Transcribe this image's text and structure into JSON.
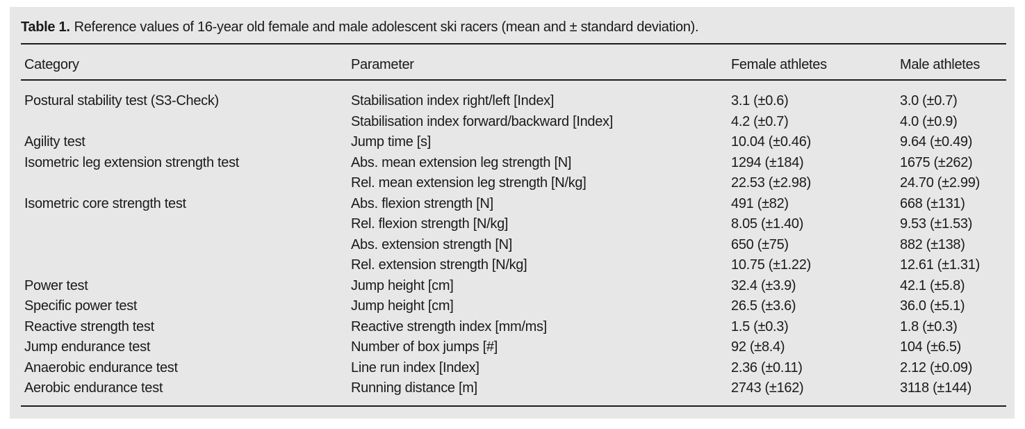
{
  "page": {
    "background": "#ffffff",
    "panel_background": "#e7e7e7",
    "text_color": "#1a1a1a",
    "rule_color": "#1c1c1c"
  },
  "caption": {
    "label": "Table 1.",
    "text": "Reference values of 16-year old female and male adolescent ski racers (mean and ± standard deviation)."
  },
  "table": {
    "columns": [
      "Category",
      "Parameter",
      "Female athletes",
      "Male athletes"
    ],
    "rows": [
      {
        "category": "Postural stability test (S3-Check)",
        "parameter": "Stabilisation index right/left [Index]",
        "female": "3.1 (±0.6)",
        "male": "3.0 (±0.7)"
      },
      {
        "category": "",
        "parameter": "Stabilisation index forward/backward [Index]",
        "female": "4.2 (±0.7)",
        "male": "4.0 (±0.9)"
      },
      {
        "category": "Agility test",
        "parameter": "Jump time [s]",
        "female": "10.04 (±0.46)",
        "male": "9.64 (±0.49)"
      },
      {
        "category": "Isometric leg extension strength test",
        "parameter": "Abs. mean extension leg strength [N]",
        "female": "1294 (±184)",
        "male": "1675 (±262)"
      },
      {
        "category": "",
        "parameter": "Rel. mean extension leg strength [N/kg]",
        "female": "22.53 (±2.98)",
        "male": "24.70 (±2.99)"
      },
      {
        "category": "Isometric core strength test",
        "parameter": "Abs. flexion strength [N]",
        "female": "491 (±82)",
        "male": "668 (±131)"
      },
      {
        "category": "",
        "parameter": "Rel. flexion strength [N/kg]",
        "female": "8.05 (±1.40)",
        "male": "9.53 (±1.53)"
      },
      {
        "category": "",
        "parameter": "Abs. extension strength [N]",
        "female": "650 (±75)",
        "male": "882 (±138)"
      },
      {
        "category": "",
        "parameter": "Rel. extension strength [N/kg]",
        "female": "10.75 (±1.22)",
        "male": "12.61 (±1.31)"
      },
      {
        "category": "Power test",
        "parameter": "Jump height [cm]",
        "female": "32.4 (±3.9)",
        "male": "42.1 (±5.8)"
      },
      {
        "category": "Specific power test",
        "parameter": "Jump height [cm]",
        "female": "26.5 (±3.6)",
        "male": "36.0 (±5.1)"
      },
      {
        "category": "Reactive strength test",
        "parameter": "Reactive strength index [mm/ms]",
        "female": "1.5 (±0.3)",
        "male": "1.8 (±0.3)"
      },
      {
        "category": "Jump endurance test",
        "parameter": "Number of box jumps [#]",
        "female": "92 (±8.4)",
        "male": "104 (±6.5)"
      },
      {
        "category": "Anaerobic endurance test",
        "parameter": "Line run index [Index]",
        "female": "2.36 (±0.11)",
        "male": "2.12 (±0.09)"
      },
      {
        "category": "Aerobic endurance test",
        "parameter": "Running distance [m]",
        "female": "2743 (±162)",
        "male": "3118 (±144)"
      }
    ]
  }
}
